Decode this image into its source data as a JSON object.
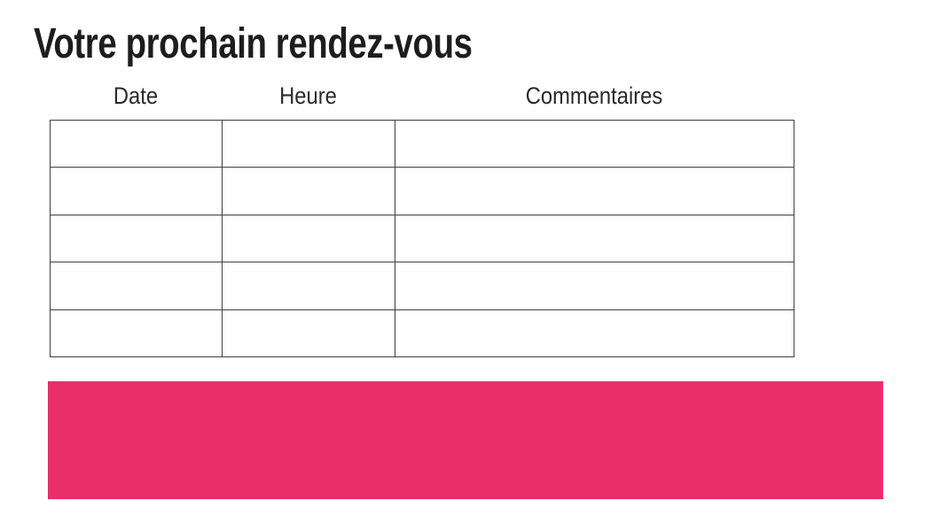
{
  "title": "Votre prochain rendez-vous",
  "table": {
    "columns": [
      "Date",
      "Heure",
      "Commentaires"
    ],
    "rows": [
      [
        "",
        "",
        ""
      ],
      [
        "",
        "",
        ""
      ],
      [
        "",
        "",
        ""
      ],
      [
        "",
        "",
        ""
      ],
      [
        "",
        "",
        ""
      ]
    ]
  },
  "banner": {
    "color": "#ea2e6a"
  },
  "colors": {
    "border": "#3f3f3f",
    "title_text": "#1d1d1d",
    "header_text": "#2a2a2a"
  }
}
